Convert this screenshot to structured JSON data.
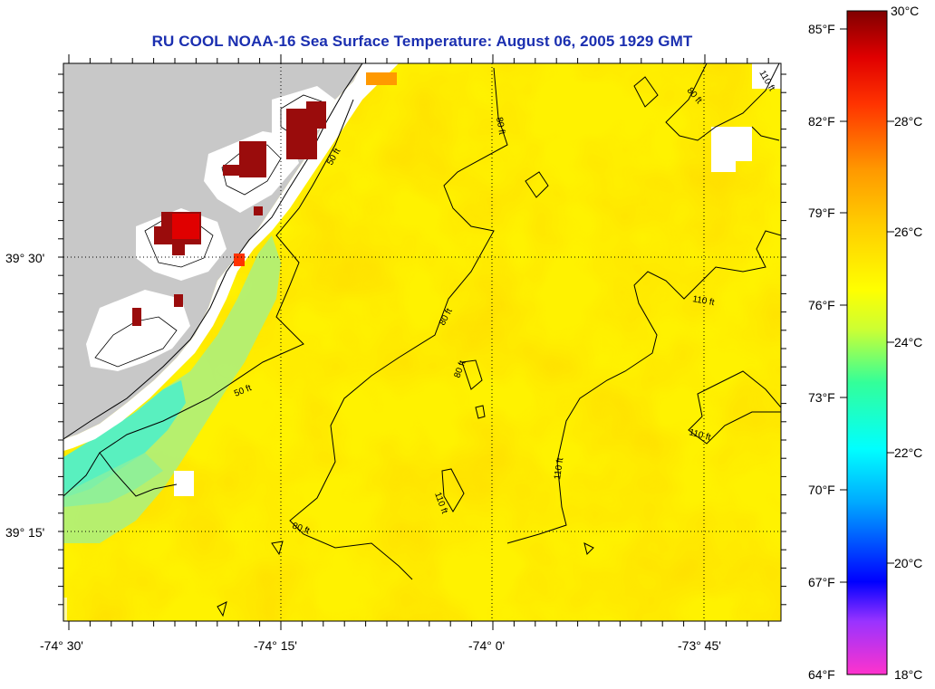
{
  "title": "RU COOL  NOAA-16  Sea Surface Temperature:  August 06, 2005 1929 GMT",
  "map": {
    "lat_labels": [
      "39° 30'",
      "39° 15'"
    ],
    "lon_labels": [
      "-74° 30'",
      "-74° 15'",
      "-74° 0'",
      "-73° 45'"
    ],
    "contour_labels": [
      "50 ft",
      "80 ft",
      "110 ft"
    ],
    "colors": {
      "land": "#c8c8c8",
      "cloud": "#ffffff",
      "warm_pixels": "#9a0c0c"
    }
  },
  "colorbar": {
    "celsius_labels": [
      "30°C",
      "28°C",
      "26°C",
      "24°C",
      "22°C",
      "20°C",
      "18°C"
    ],
    "fahrenheit_labels": [
      "85°F",
      "82°F",
      "79°F",
      "76°F",
      "73°F",
      "70°F",
      "67°F",
      "64°F"
    ],
    "range_celsius": [
      18,
      30
    ],
    "gradient": [
      "#ff33cc",
      "#9933ff",
      "#0000ff",
      "#00aaff",
      "#00ffff",
      "#33ff99",
      "#ccff33",
      "#ffff00",
      "#ffcc00",
      "#ff9900",
      "#ff3300",
      "#e00000",
      "#800000"
    ]
  }
}
